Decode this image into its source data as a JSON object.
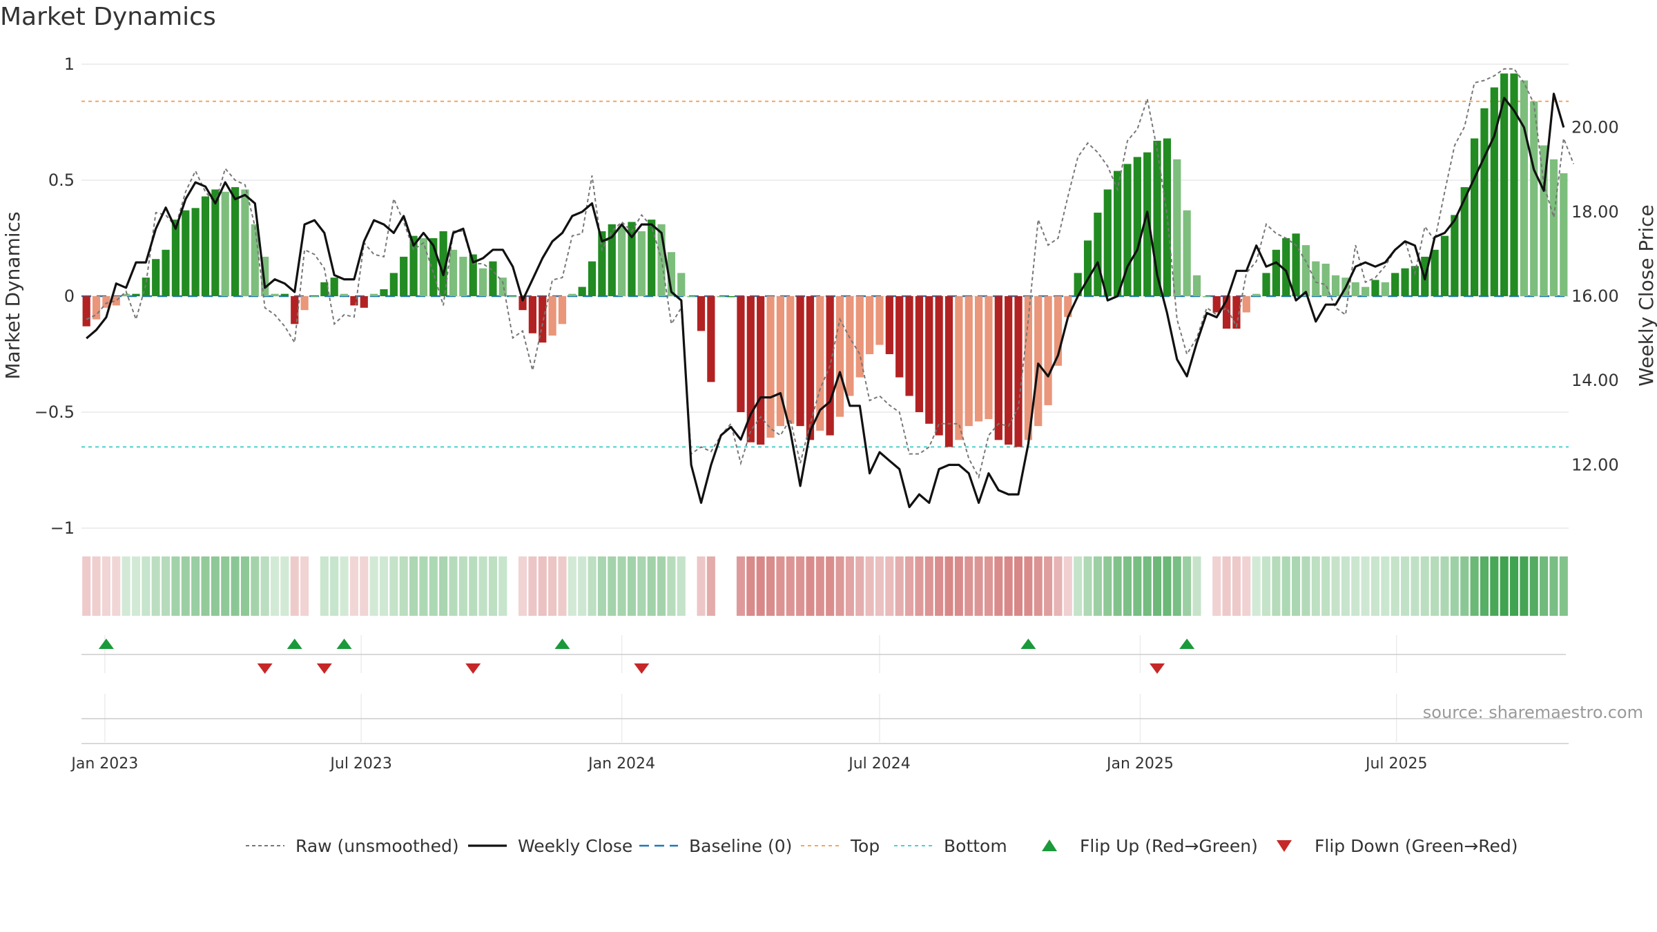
{
  "chart_data": {
    "type": "bar",
    "title": "Market Dynamics",
    "ylabel": "Market Dynamics",
    "y2label": "Weekly Close Price",
    "ylim": [
      -1,
      1
    ],
    "y2lim": [
      10.5,
      21.5
    ],
    "yticks": [
      1,
      0.5,
      0,
      -0.5,
      -1
    ],
    "ytick_labels": [
      "1",
      "0.5",
      "0",
      "−0.5",
      "−1"
    ],
    "y2ticks": [
      20,
      18,
      16,
      14,
      12
    ],
    "y2tick_labels": [
      "20.00",
      "18.00",
      "16.00",
      "14.00",
      "12.00"
    ],
    "xticks": [
      "2023-01-01",
      "2023-07-01",
      "2024-01-01",
      "2024-07-01",
      "2025-01-01",
      "2025-07-01"
    ],
    "xtick_labels": [
      "Jan 2023",
      "Jul 2023",
      "Jan 2024",
      "Jul 2024",
      "Jan 2025",
      "Jul 2025"
    ],
    "start_date": "2022-12-19",
    "top_line": 0.84,
    "bottom_line": -0.65,
    "grid": true,
    "legend_position": "bottom-center",
    "source": "source: sharemaestro.com",
    "colors": {
      "strong_green": "#228B22",
      "light_green": "#7DBE7D",
      "strong_red": "#B22222",
      "light_red": "#E9967A",
      "close": "#111111",
      "raw": "#777777",
      "baseline": "#1f77b4",
      "top": "#F4A460",
      "bottom": "#48D1CC",
      "flip_up": "#1a9a3a",
      "flip_down": "#c62828"
    },
    "momentum": [
      -0.13,
      -0.1,
      -0.05,
      -0.04,
      0.01,
      0.01,
      0.08,
      0.16,
      0.2,
      0.33,
      0.37,
      0.38,
      0.43,
      0.46,
      0.45,
      0.47,
      0.46,
      0.31,
      0.17,
      0.01,
      0.01,
      -0.12,
      -0.06,
      0,
      0.06,
      0.08,
      0.01,
      -0.04,
      -0.05,
      0.01,
      0.03,
      0.1,
      0.17,
      0.26,
      0.25,
      0.25,
      0.28,
      0.2,
      0.17,
      0.18,
      0.12,
      0.15,
      0.08,
      0,
      -0.06,
      -0.16,
      -0.2,
      -0.17,
      -0.12,
      0.01,
      0.04,
      0.15,
      0.28,
      0.31,
      0.3,
      0.32,
      0.28,
      0.33,
      0.31,
      0.19,
      0.1,
      0,
      -0.15,
      -0.37,
      0,
      0,
      -0.5,
      -0.63,
      -0.64,
      -0.61,
      -0.56,
      -0.55,
      -0.56,
      -0.62,
      -0.58,
      -0.6,
      -0.52,
      -0.43,
      -0.35,
      -0.25,
      -0.21,
      -0.25,
      -0.35,
      -0.43,
      -0.5,
      -0.55,
      -0.6,
      -0.65,
      -0.62,
      -0.56,
      -0.54,
      -0.53,
      -0.62,
      -0.64,
      -0.65,
      -0.62,
      -0.56,
      -0.47,
      -0.3,
      -0.09,
      0.1,
      0.24,
      0.36,
      0.46,
      0.54,
      0.57,
      0.6,
      0.62,
      0.67,
      0.68,
      0.59,
      0.37,
      0.09,
      0,
      -0.07,
      -0.14,
      -0.14,
      -0.07,
      0.01,
      0.1,
      0.2,
      0.25,
      0.27,
      0.22,
      0.15,
      0.14,
      0.09,
      0.08,
      0.06,
      0.04,
      0.07,
      0.06,
      0.1,
      0.12,
      0.13,
      0.17,
      0.2,
      0.26,
      0.35,
      0.47,
      0.68,
      0.81,
      0.9,
      0.96,
      0.96,
      0.93,
      0.84,
      0.65,
      0.59,
      0.53
    ],
    "close": [
      15.0,
      15.2,
      15.5,
      16.3,
      16.2,
      16.8,
      16.8,
      17.6,
      18.1,
      17.6,
      18.3,
      18.7,
      18.6,
      18.2,
      18.7,
      18.3,
      18.4,
      18.2,
      16.2,
      16.4,
      16.3,
      16.1,
      17.7,
      17.8,
      17.5,
      16.5,
      16.4,
      16.4,
      17.3,
      17.8,
      17.7,
      17.5,
      17.9,
      17.2,
      17.5,
      17.2,
      16.5,
      17.5,
      17.6,
      16.8,
      16.9,
      17.1,
      17.1,
      16.7,
      15.9,
      16.4,
      16.9,
      17.3,
      17.5,
      17.9,
      18.0,
      18.2,
      17.3,
      17.4,
      17.7,
      17.4,
      17.7,
      17.7,
      17.5,
      16.1,
      15.9,
      12.0,
      11.1,
      12.0,
      12.7,
      12.9,
      12.6,
      13.2,
      13.6,
      13.6,
      13.7,
      12.8,
      11.5,
      12.8,
      13.3,
      13.5,
      14.2,
      13.4,
      13.4,
      11.8,
      12.3,
      12.1,
      11.9,
      11.0,
      11.3,
      11.1,
      11.9,
      12.0,
      12.0,
      11.8,
      11.1,
      11.8,
      11.4,
      11.3,
      11.3,
      12.5,
      14.4,
      14.1,
      14.6,
      15.5,
      16.0,
      16.4,
      16.8,
      15.9,
      16.0,
      16.7,
      17.1,
      18.0,
      16.5,
      15.6,
      14.5,
      14.1,
      14.9,
      15.6,
      15.5,
      15.9,
      16.6,
      16.6,
      17.2,
      16.7,
      16.8,
      16.6,
      15.9,
      16.1,
      15.4,
      15.8,
      15.8,
      16.2,
      16.7,
      16.8,
      16.7,
      16.8,
      17.1,
      17.3,
      17.2,
      16.4,
      17.4,
      17.5,
      17.8,
      18.3,
      18.8,
      19.3,
      19.8,
      20.7,
      20.4,
      20.0,
      19.0,
      18.5,
      20.8,
      20.0
    ],
    "raw_series": [
      -0.1,
      -0.08,
      -0.03,
      -0.02,
      0.02,
      -0.1,
      0.05,
      0.36,
      0.35,
      0.3,
      0.45,
      0.54,
      0.45,
      0.4,
      0.55,
      0.5,
      0.48,
      0.3,
      -0.05,
      -0.08,
      -0.13,
      -0.2,
      0.2,
      0.18,
      0.12,
      -0.12,
      -0.08,
      -0.09,
      0.23,
      0.18,
      0.17,
      0.42,
      0.32,
      0.2,
      0.23,
      0.1,
      -0.04,
      0.28,
      0.28,
      0.14,
      0.14,
      0.11,
      0.06,
      -0.18,
      -0.15,
      -0.32,
      -0.12,
      0.07,
      0.08,
      0.26,
      0.27,
      0.52,
      0.2,
      0.28,
      0.32,
      0.28,
      0.35,
      0.3,
      0.16,
      -0.12,
      -0.05,
      -0.68,
      -0.65,
      -0.67,
      -0.6,
      -0.55,
      -0.72,
      -0.58,
      -0.52,
      -0.57,
      -0.6,
      -0.53,
      -0.72,
      -0.55,
      -0.4,
      -0.3,
      -0.1,
      -0.18,
      -0.25,
      -0.45,
      -0.43,
      -0.47,
      -0.5,
      -0.68,
      -0.68,
      -0.65,
      -0.55,
      -0.55,
      -0.55,
      -0.7,
      -0.78,
      -0.6,
      -0.55,
      -0.56,
      -0.48,
      -0.1,
      0.33,
      0.22,
      0.25,
      0.43,
      0.6,
      0.66,
      0.62,
      0.56,
      0.46,
      0.67,
      0.72,
      0.85,
      0.63,
      0.35,
      -0.1,
      -0.25,
      -0.18,
      -0.05,
      -0.08,
      -0.05,
      -0.13,
      0.1,
      0.15,
      0.31,
      0.27,
      0.25,
      0.22,
      0.15,
      0.06,
      0.05,
      -0.05,
      -0.08,
      0.22,
      0.06,
      0.08,
      0.13,
      0.2,
      0.24,
      0.1,
      0.3,
      0.24,
      0.45,
      0.65,
      0.73,
      0.92,
      0.93,
      0.95,
      0.98,
      0.98,
      0.92,
      0.83,
      0.48,
      0.34,
      0.68,
      0.57
    ],
    "flip_up_index": [
      2,
      21,
      26,
      48,
      95,
      111
    ],
    "flip_down_index": [
      18,
      24,
      39,
      56,
      108
    ],
    "legend": [
      {
        "label": "Raw (unsmoothed)",
        "marker": "dotted-line"
      },
      {
        "label": "Weekly Close",
        "marker": "solid-line"
      },
      {
        "label": "Baseline (0)",
        "marker": "dashed-line"
      },
      {
        "label": "Top",
        "marker": "dotted-line"
      },
      {
        "label": "Bottom",
        "marker": "dotted-line"
      },
      {
        "label": "Flip Up (Red→Green)",
        "marker": "up-triangle"
      },
      {
        "label": "Flip Down (Green→Red)",
        "marker": "down-triangle"
      }
    ]
  }
}
